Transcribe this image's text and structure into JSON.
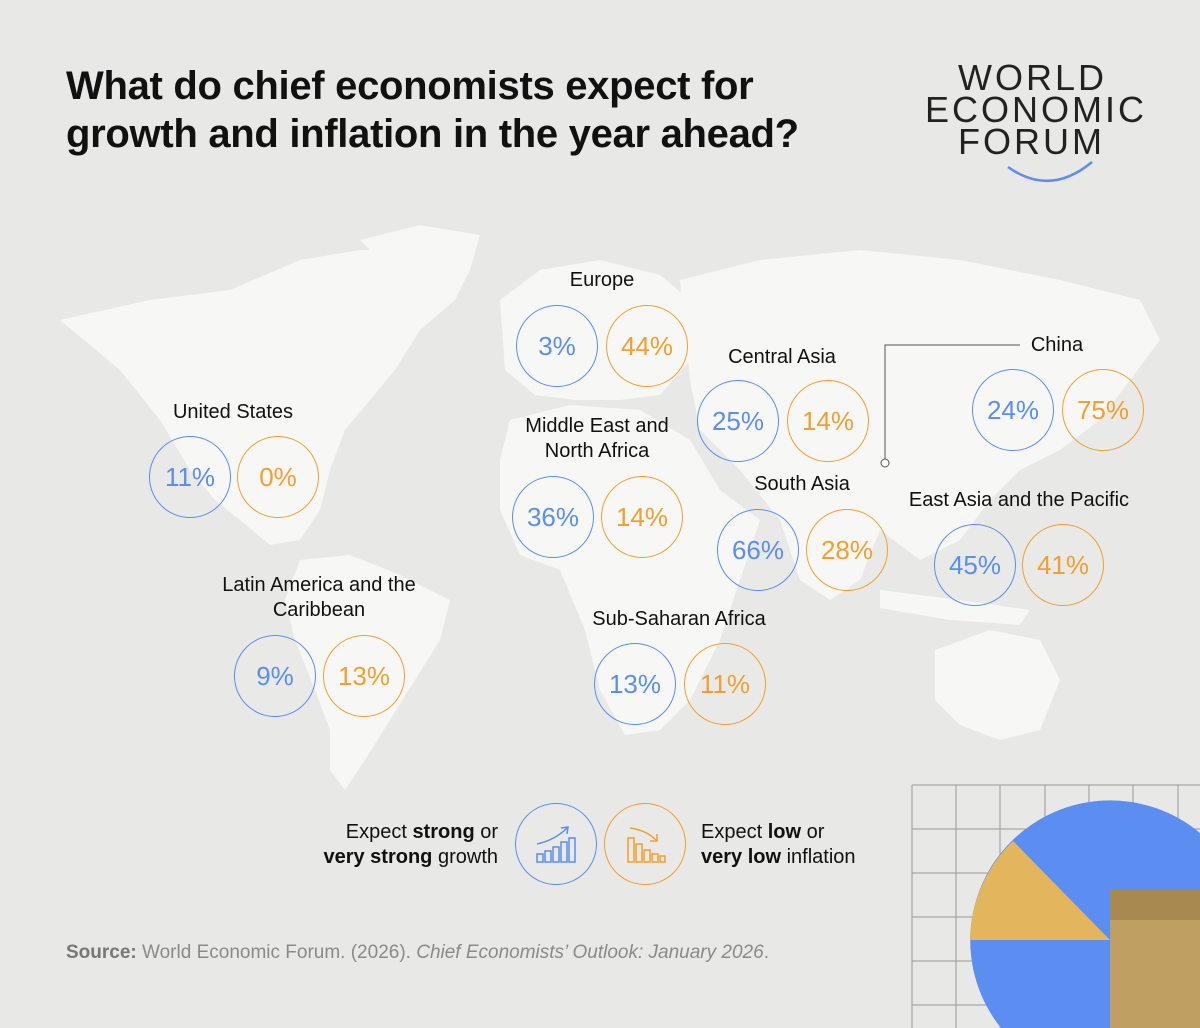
{
  "title": "What do chief economists expect for growth and inflation in the year ahead?",
  "logo": {
    "lines": [
      "WORLD",
      "ECONOMIC",
      "FORUM"
    ]
  },
  "colors": {
    "growth": "#5b8ef0",
    "inflation": "#f0a030",
    "background": "#e8e8e6",
    "map": "#f7f7f5"
  },
  "regions": [
    {
      "name": "United States",
      "growth": "11%",
      "inflation": "0%"
    },
    {
      "name": "Europe",
      "growth": "3%",
      "inflation": "44%"
    },
    {
      "name": "Central Asia",
      "growth": "25%",
      "inflation": "14%"
    },
    {
      "name": "China",
      "growth": "24%",
      "inflation": "75%"
    },
    {
      "name": "Middle East and North Africa",
      "growth": "36%",
      "inflation": "14%"
    },
    {
      "name": "South Asia",
      "growth": "66%",
      "inflation": "28%"
    },
    {
      "name": "East Asia and the Pacific",
      "growth": "45%",
      "inflation": "41%"
    },
    {
      "name": "Latin America and the Caribbean",
      "growth": "9%",
      "inflation": "13%"
    },
    {
      "name": "Sub-Saharan Africa",
      "growth": "13%",
      "inflation": "11%"
    }
  ],
  "legend": {
    "growth": {
      "pre": "Expect ",
      "bold1": "strong",
      "mid": " or",
      "bold2": "very strong",
      "post": " growth",
      "icon": "rising-bar-chart-icon"
    },
    "inflation": {
      "pre": "Expect ",
      "bold1": "low",
      "mid": " or",
      "bold2": "very low",
      "post": " inflation",
      "icon": "falling-bar-chart-icon"
    }
  },
  "source": {
    "label": "Source:",
    "text": " World Economic Forum. (2026). ",
    "italic": "Chief Economists’ Outlook: January 2026",
    "end": "."
  }
}
